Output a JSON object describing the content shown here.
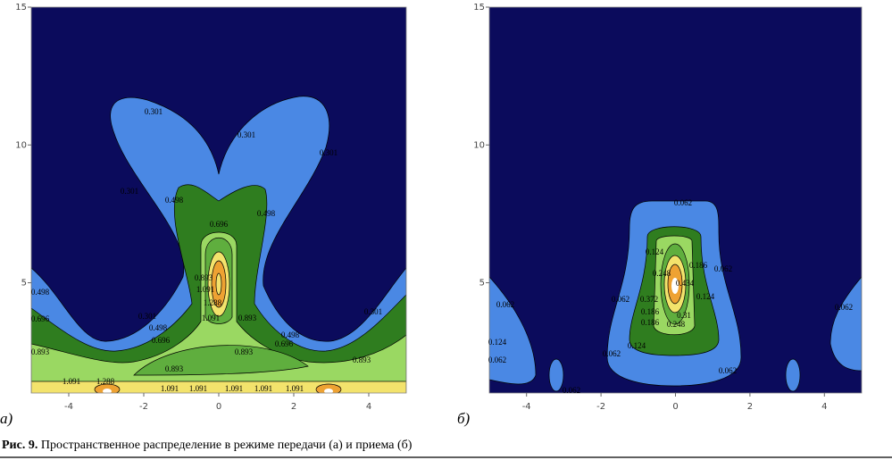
{
  "figure": {
    "caption_label": "Рис. 9.",
    "caption_text": "Пространственное распределение в режиме передачи (а) и приема (б)",
    "panels": [
      {
        "label": "а)",
        "xlim": [
          -5,
          5
        ],
        "ylim": [
          1,
          15
        ],
        "xticks": [
          -4,
          -2,
          0,
          2,
          4
        ],
        "yticks": [
          5,
          10,
          15
        ],
        "contour_labels": [
          "0.301",
          "0.301",
          "0.301",
          "0.301",
          "0.498",
          "0.498",
          "0.696",
          "0.893",
          "1.091",
          "1.288",
          "1.091",
          "0.893",
          "0.301",
          "0.498",
          "0.696",
          "0.893",
          "0.893",
          "0.498",
          "0.696",
          "0.301",
          "0.893",
          "0.893",
          "0.696",
          "0.498",
          "1.091",
          "1.288",
          "1.091",
          "1.091",
          "1.091",
          "1.091",
          "1.091"
        ]
      },
      {
        "label": "б)",
        "xlim": [
          -5,
          5
        ],
        "ylim": [
          1,
          15
        ],
        "xticks": [
          -4,
          -2,
          0,
          2,
          4
        ],
        "yticks": [
          5,
          10,
          15
        ],
        "contour_labels": [
          "0.062",
          "0.124",
          "0.062",
          "0.062",
          "0.124",
          "0.124",
          "0.186",
          "0.062",
          "0.248",
          "0.434",
          "0.124",
          "0.372",
          "0.186",
          "0.31",
          "0.186",
          "0.248",
          "0.062",
          "0.062",
          "0.062",
          "0.062",
          "0.062"
        ]
      }
    ]
  }
}
